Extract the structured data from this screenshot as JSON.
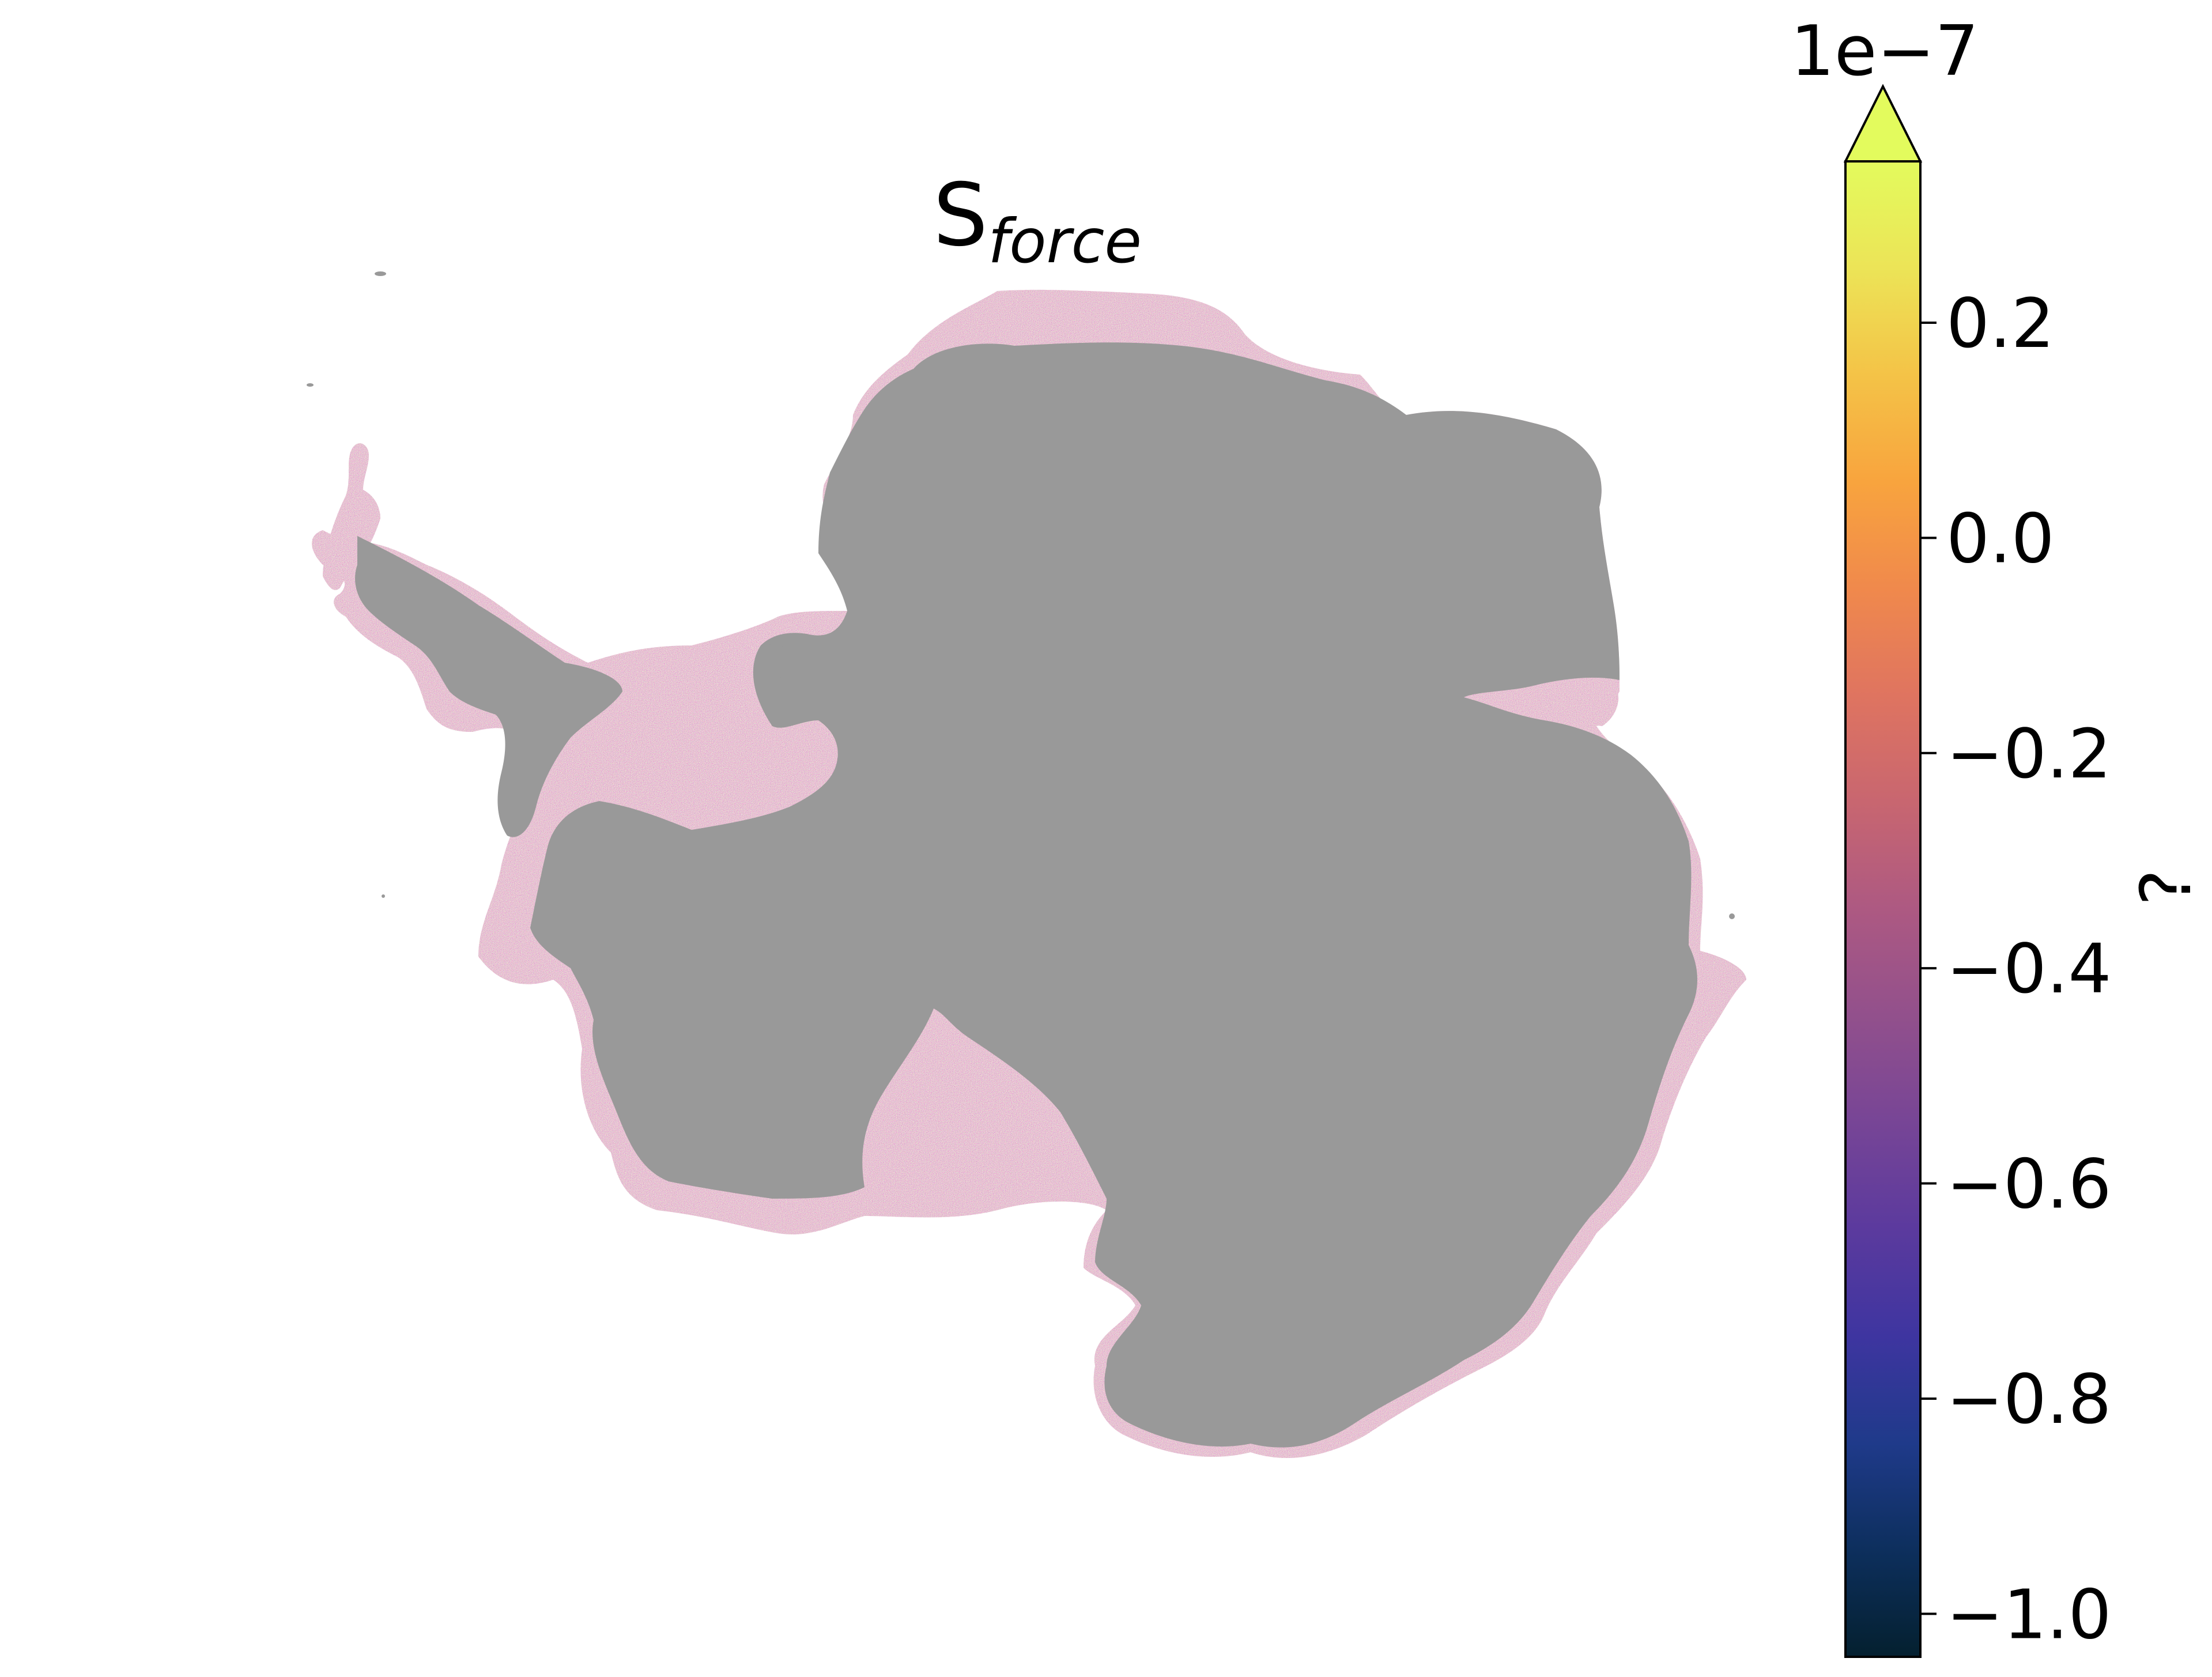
{
  "chart_data": {
    "type": "heatmap",
    "title": "S",
    "title_subscript": "force",
    "colorbar": {
      "label": "?",
      "offset_text": "1e−7",
      "colormap": "thermal",
      "vmin": -1.04,
      "vmax": 0.35,
      "extend": "max",
      "ticks": [
        -1.0,
        -0.8,
        -0.6,
        -0.4,
        -0.2,
        0.0,
        0.2
      ],
      "tick_labels": [
        "−1.0",
        "−0.8",
        "−0.6",
        "−0.4",
        "−0.2",
        "0.0",
        "0.2"
      ]
    },
    "map": {
      "region": "Antarctica",
      "masked_color": "#999999",
      "field_value_range": [
        -0.6,
        0.3
      ],
      "axes_visible": false
    }
  },
  "colors": {
    "masked_land": "#999999",
    "background": "#ffffff",
    "colormap_stops": [
      "#04202f",
      "#0d2f5d",
      "#1f3a8a",
      "#3e35a0",
      "#5b3a9e",
      "#774596",
      "#92508c",
      "#ad5982",
      "#c86670",
      "#df7460",
      "#f0894c",
      "#f8a43e",
      "#f4c347",
      "#ece457",
      "#e3fb5d"
    ]
  }
}
